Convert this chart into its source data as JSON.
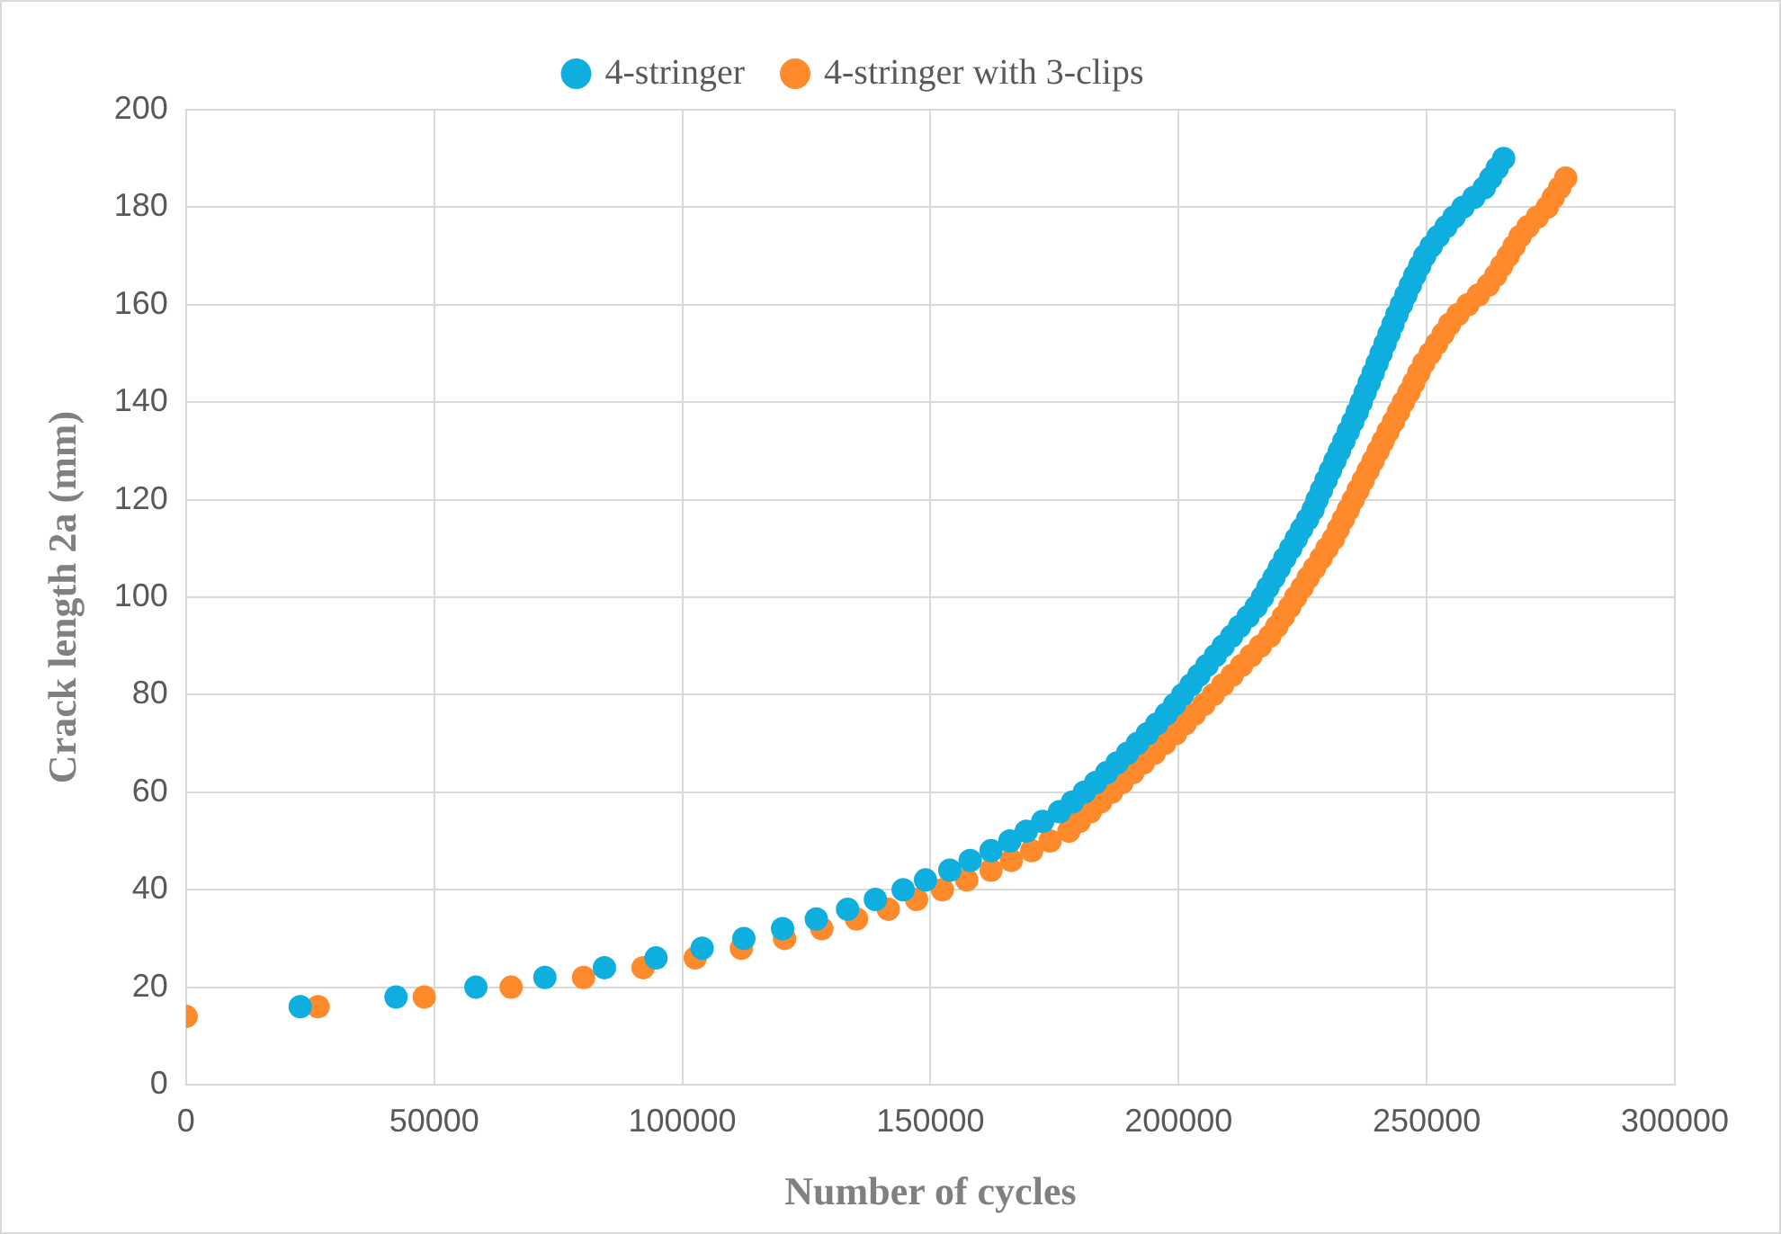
{
  "chart_data": {
    "type": "scatter",
    "xlabel": "Number of cycles",
    "ylabel": "Crack length 2a (mm)",
    "xlim": [
      0,
      300000
    ],
    "xticks": [
      0,
      50000,
      100000,
      150000,
      200000,
      250000,
      300000
    ],
    "ylim": [
      0,
      200
    ],
    "yticks": [
      0,
      20,
      40,
      60,
      80,
      100,
      120,
      140,
      160,
      180,
      200
    ],
    "grid": true,
    "legend": "top",
    "marker": "circle",
    "series": [
      {
        "name": "4-stringer",
        "color": "#0eafdf",
        "x": [
          23000,
          42300,
          58400,
          72300,
          84300,
          94700,
          104000,
          112400,
          120200,
          127000,
          133300,
          138900,
          144500,
          149000,
          153900,
          158000,
          162200,
          166000,
          169300,
          172600,
          176000,
          178600,
          181000,
          183300,
          185500,
          187600,
          189700,
          191700,
          193700,
          195600,
          197500,
          199200,
          200800,
          202500,
          204100,
          205700,
          207400,
          209000,
          210700,
          212300,
          214000,
          215600,
          216900,
          218000,
          219200,
          220300,
          221400,
          222600,
          223700,
          224800,
          226000,
          227100,
          227900,
          228800,
          229700,
          230600,
          231500,
          232400,
          233300,
          234200,
          235100,
          236000,
          236800,
          237600,
          238400,
          239200,
          240000,
          240800,
          241600,
          242400,
          243200,
          244000,
          244900,
          245800,
          246700,
          247600,
          248600,
          249600,
          250900,
          252300,
          253900,
          255500,
          257300,
          259500,
          261600,
          262900,
          264200,
          265500
        ],
        "values": [
          16,
          18,
          20,
          22,
          24,
          26,
          28,
          30,
          32,
          34,
          36,
          38,
          40,
          42,
          44,
          46,
          48,
          50,
          52,
          54,
          56,
          58,
          60,
          62,
          64,
          66,
          68,
          70,
          72,
          74,
          76,
          78,
          80,
          82,
          84,
          86,
          88,
          90,
          92,
          94,
          96,
          98,
          100,
          102,
          104,
          106,
          108,
          110,
          112,
          114,
          116,
          118,
          120,
          122,
          124,
          126,
          128,
          130,
          132,
          134,
          136,
          138,
          140,
          142,
          144,
          146,
          148,
          150,
          152,
          154,
          156,
          158,
          160,
          162,
          164,
          166,
          168,
          170,
          172,
          174,
          176,
          178,
          180,
          182,
          184,
          186,
          188,
          190
        ]
      },
      {
        "name": "4-stringer with 3-clips",
        "color": "#ff8a2b",
        "x": [
          0,
          26600,
          48000,
          65500,
          80100,
          92100,
          102600,
          111900,
          120600,
          128100,
          135100,
          141500,
          147200,
          152400,
          157300,
          162200,
          166300,
          170400,
          174100,
          177900,
          180000,
          182200,
          184300,
          186500,
          188600,
          190800,
          192900,
          195100,
          197200,
          199400,
          201300,
          203200,
          205100,
          207000,
          208900,
          210800,
          212700,
          214600,
          216500,
          218400,
          219800,
          221100,
          222400,
          223600,
          224900,
          226100,
          227400,
          228700,
          229900,
          231200,
          232200,
          233200,
          234200,
          235200,
          236200,
          237200,
          238200,
          239200,
          240200,
          241200,
          242200,
          243300,
          244300,
          245300,
          246400,
          247400,
          248400,
          249400,
          250700,
          252000,
          253300,
          254600,
          256300,
          258300,
          260400,
          262400,
          263900,
          265100,
          266400,
          267600,
          268800,
          270400,
          272300,
          274300,
          275500,
          276800,
          278000
        ],
        "values": [
          14,
          16,
          18,
          20,
          22,
          24,
          26,
          28,
          30,
          32,
          34,
          36,
          38,
          40,
          42,
          44,
          46,
          48,
          50,
          52,
          54,
          56,
          58,
          60,
          62,
          64,
          66,
          68,
          70,
          72,
          74,
          76,
          78,
          80,
          82,
          84,
          86,
          88,
          90,
          92,
          94,
          96,
          98,
          100,
          102,
          104,
          106,
          108,
          110,
          112,
          114,
          116,
          118,
          120,
          122,
          124,
          126,
          128,
          130,
          132,
          134,
          136,
          138,
          140,
          142,
          144,
          146,
          148,
          150,
          152,
          154,
          156,
          158,
          160,
          162,
          164,
          166,
          168,
          170,
          172,
          174,
          176,
          178,
          180,
          182,
          184,
          186
        ]
      }
    ]
  }
}
